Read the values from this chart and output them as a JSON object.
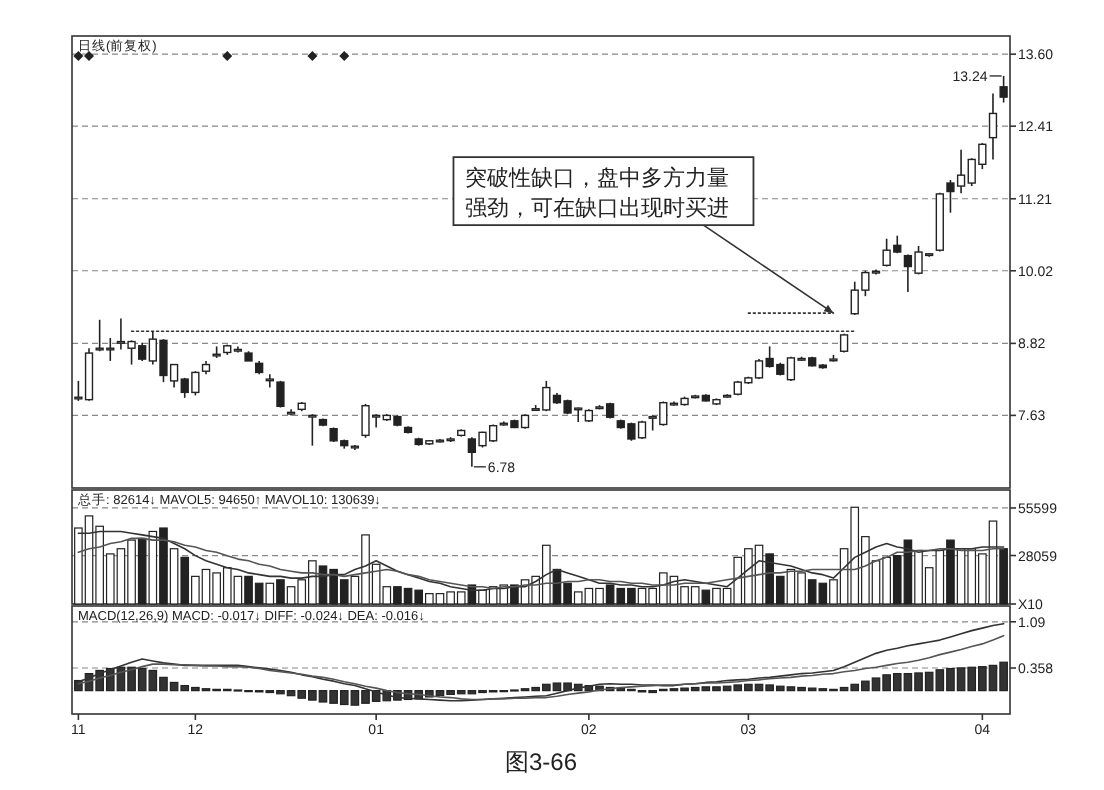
{
  "chart_data": [
    {
      "type": "candlestick",
      "categories": [
        null,
        null,
        null,
        null,
        null,
        null,
        null,
        null,
        null,
        null,
        null,
        null,
        null,
        null,
        null,
        null,
        null,
        null,
        null,
        null,
        null,
        null,
        null,
        null,
        null,
        null,
        null,
        null,
        null,
        null,
        null,
        null,
        null,
        null,
        null,
        null,
        null,
        null,
        null,
        null,
        null,
        null,
        null,
        null,
        null,
        null,
        null,
        null,
        null,
        null,
        null,
        null,
        null,
        null,
        null,
        null,
        null,
        null,
        null,
        null,
        null,
        null,
        null,
        null,
        null,
        null,
        null,
        null,
        null,
        null,
        null,
        null,
        null,
        null,
        null,
        null,
        null,
        null,
        null,
        null,
        null,
        null,
        null,
        null,
        null,
        null,
        null,
        null
      ],
      "ohlc": [
        [
          7.92,
          8.2,
          7.87,
          7.93
        ],
        [
          7.89,
          8.74,
          7.87,
          8.66
        ],
        [
          8.72,
          9.21,
          8.69,
          8.74
        ],
        [
          8.74,
          8.91,
          8.53,
          8.74
        ],
        [
          8.83,
          9.23,
          8.72,
          8.85
        ],
        [
          8.74,
          8.87,
          8.47,
          8.85
        ],
        [
          8.78,
          8.83,
          8.53,
          8.56
        ],
        [
          8.53,
          9.02,
          8.47,
          8.89
        ],
        [
          8.87,
          8.89,
          8.18,
          8.29
        ],
        [
          8.2,
          8.47,
          8.09,
          8.47
        ],
        [
          8.23,
          8.25,
          7.92,
          8.01
        ],
        [
          8.01,
          8.36,
          7.96,
          8.34
        ],
        [
          8.36,
          8.53,
          8.31,
          8.47
        ],
        [
          8.63,
          8.77,
          8.58,
          8.64
        ],
        [
          8.67,
          8.8,
          8.63,
          8.78
        ],
        [
          8.72,
          8.77,
          8.67,
          8.72
        ],
        [
          8.66,
          8.69,
          8.53,
          8.53
        ],
        [
          8.49,
          8.53,
          8.31,
          8.34
        ],
        [
          8.22,
          8.31,
          8.09,
          8.23
        ],
        [
          8.18,
          8.2,
          7.76,
          7.78
        ],
        [
          7.67,
          7.73,
          7.63,
          7.68
        ],
        [
          7.73,
          7.85,
          7.7,
          7.83
        ],
        [
          7.63,
          7.65,
          7.13,
          7.63
        ],
        [
          7.56,
          7.58,
          7.45,
          7.47
        ],
        [
          7.41,
          7.43,
          7.19,
          7.21
        ],
        [
          7.21,
          7.23,
          7.08,
          7.13
        ],
        [
          7.11,
          7.14,
          7.06,
          7.12
        ],
        [
          7.3,
          7.82,
          7.26,
          7.79
        ],
        [
          7.63,
          7.65,
          7.43,
          7.63
        ],
        [
          7.56,
          7.65,
          7.54,
          7.63
        ],
        [
          7.61,
          7.63,
          7.45,
          7.47
        ],
        [
          7.43,
          7.45,
          7.33,
          7.35
        ],
        [
          7.24,
          7.26,
          7.13,
          7.15
        ],
        [
          7.16,
          7.22,
          7.14,
          7.21
        ],
        [
          7.21,
          7.24,
          7.18,
          7.22
        ],
        [
          7.23,
          7.27,
          7.19,
          7.24
        ],
        [
          7.3,
          7.4,
          7.28,
          7.38
        ],
        [
          7.24,
          7.27,
          6.78,
          7.02
        ],
        [
          7.13,
          7.36,
          7.1,
          7.35
        ],
        [
          7.21,
          7.48,
          7.19,
          7.46
        ],
        [
          7.49,
          7.53,
          7.46,
          7.5
        ],
        [
          7.54,
          7.56,
          7.42,
          7.43
        ],
        [
          7.43,
          7.65,
          7.41,
          7.63
        ],
        [
          7.73,
          7.8,
          7.71,
          7.74
        ],
        [
          7.72,
          8.2,
          7.7,
          8.09
        ],
        [
          7.96,
          8.0,
          7.82,
          7.84
        ],
        [
          7.87,
          7.89,
          7.65,
          7.67
        ],
        [
          7.74,
          7.76,
          7.52,
          7.75
        ],
        [
          7.54,
          7.73,
          7.52,
          7.71
        ],
        [
          7.76,
          7.8,
          7.73,
          7.77
        ],
        [
          7.82,
          7.84,
          7.58,
          7.6
        ],
        [
          7.54,
          7.56,
          7.41,
          7.43
        ],
        [
          7.49,
          7.51,
          7.21,
          7.24
        ],
        [
          7.26,
          7.54,
          7.24,
          7.52
        ],
        [
          7.6,
          7.63,
          7.38,
          7.61
        ],
        [
          7.48,
          7.86,
          7.46,
          7.84
        ],
        [
          7.82,
          7.86,
          7.79,
          7.83
        ],
        [
          7.81,
          7.94,
          7.79,
          7.91
        ],
        [
          7.94,
          7.97,
          7.91,
          7.95
        ],
        [
          7.96,
          7.98,
          7.86,
          7.87
        ],
        [
          7.82,
          7.91,
          7.8,
          7.89
        ],
        [
          7.95,
          7.98,
          7.92,
          7.96
        ],
        [
          7.98,
          8.2,
          7.96,
          8.18
        ],
        [
          8.17,
          8.27,
          8.15,
          8.25
        ],
        [
          8.25,
          8.56,
          8.23,
          8.53
        ],
        [
          8.57,
          8.77,
          8.42,
          8.44
        ],
        [
          8.47,
          8.5,
          8.29,
          8.31
        ],
        [
          8.22,
          8.6,
          8.2,
          8.58
        ],
        [
          8.56,
          8.6,
          8.53,
          8.57
        ],
        [
          8.58,
          8.6,
          8.44,
          8.45
        ],
        [
          8.46,
          8.48,
          8.4,
          8.42
        ],
        [
          8.55,
          8.63,
          8.52,
          8.56
        ],
        [
          8.69,
          8.98,
          8.67,
          8.96
        ],
        [
          9.31,
          9.84,
          9.29,
          9.7
        ],
        [
          9.7,
          10.02,
          9.6,
          9.99
        ],
        [
          10.0,
          10.04,
          9.96,
          10.01
        ],
        [
          10.11,
          10.55,
          10.09,
          10.36
        ],
        [
          10.44,
          10.6,
          10.31,
          10.33
        ],
        [
          10.27,
          10.29,
          9.67,
          10.09
        ],
        [
          9.98,
          10.43,
          9.96,
          10.33
        ],
        [
          10.29,
          10.31,
          10.25,
          10.3
        ],
        [
          10.36,
          11.31,
          10.34,
          11.29
        ],
        [
          11.47,
          11.52,
          10.98,
          11.33
        ],
        [
          11.42,
          12.02,
          11.3,
          11.6
        ],
        [
          11.47,
          11.88,
          11.42,
          11.86
        ],
        [
          11.78,
          12.13,
          11.7,
          12.11
        ],
        [
          12.22,
          12.95,
          11.86,
          12.62
        ],
        [
          13.06,
          13.24,
          12.8,
          12.89
        ]
      ],
      "series": [
        {
          "type": "scatter",
          "values": [
            13.57,
            13.57,
            null,
            null,
            null,
            null,
            null,
            null,
            null,
            null,
            null,
            null,
            null,
            null,
            13.57,
            null,
            null,
            null,
            null,
            null,
            null,
            null,
            13.57,
            null,
            null,
            13.57,
            null,
            null,
            null,
            null,
            null,
            null,
            null,
            null,
            null,
            null,
            null,
            null,
            null,
            null,
            null,
            null,
            null,
            null,
            null,
            null,
            null,
            null,
            null,
            null,
            null,
            null,
            null,
            null,
            null,
            null,
            null,
            null,
            null,
            null,
            null,
            null,
            null,
            null,
            null,
            null,
            null,
            null,
            null,
            null,
            null,
            null,
            null,
            null,
            null,
            null,
            null,
            null,
            null,
            null,
            null,
            null,
            null,
            null,
            null,
            null,
            null,
            null
          ],
          "marker": "diamond",
          "color": "#222222"
        },
        {
          "type": "line",
          "values": [
            null,
            null,
            null,
            null,
            null,
            9.02,
            9.02,
            9.02,
            9.02,
            9.02,
            9.02,
            9.02,
            9.02,
            9.02,
            9.02,
            9.02,
            9.02,
            9.02,
            9.02,
            9.02,
            9.02,
            9.02,
            9.02,
            9.02,
            9.02,
            9.02,
            9.02,
            9.02,
            9.02,
            9.02,
            9.02,
            9.02,
            9.02,
            9.02,
            9.02,
            9.02,
            9.02,
            9.02,
            9.02,
            9.02,
            9.02,
            9.02,
            9.02,
            9.02,
            9.02,
            9.02,
            9.02,
            9.02,
            9.02,
            9.02,
            9.02,
            9.02,
            9.02,
            9.02,
            9.02,
            9.02,
            9.02,
            9.02,
            9.02,
            9.02,
            9.02,
            9.02,
            9.02,
            9.02,
            9.02,
            9.02,
            9.02,
            9.02,
            9.02,
            9.02,
            9.02,
            9.02,
            9.02,
            9.02,
            null,
            null,
            null,
            null,
            null,
            null,
            null,
            null,
            null,
            null,
            null,
            null,
            null,
            null
          ],
          "line_style": "dotted",
          "color": "#333333"
        },
        {
          "type": "line",
          "values": [
            null,
            null,
            null,
            null,
            null,
            null,
            null,
            null,
            null,
            null,
            null,
            null,
            null,
            null,
            null,
            null,
            null,
            null,
            null,
            null,
            null,
            null,
            null,
            null,
            null,
            null,
            null,
            null,
            null,
            null,
            null,
            null,
            null,
            null,
            null,
            null,
            null,
            null,
            null,
            null,
            null,
            null,
            null,
            null,
            null,
            null,
            null,
            null,
            null,
            null,
            null,
            null,
            null,
            null,
            null,
            null,
            null,
            null,
            null,
            null,
            null,
            null,
            null,
            9.32,
            9.32,
            9.32,
            9.32,
            9.32,
            9.32,
            9.32,
            9.32,
            9.32,
            null,
            null,
            null,
            null,
            null,
            null,
            null,
            null,
            null,
            null,
            null,
            null,
            null,
            null,
            null,
            null
          ],
          "line_style": "dotted",
          "color": "#333333"
        }
      ],
      "ylim": [
        6.43,
        13.9
      ],
      "yticks": [
        7.63,
        8.82,
        10.02,
        11.21,
        12.41,
        {
          "value": 13.6,
          "label": "13.60"
        }
      ],
      "grid": "y",
      "tick_labels": "y",
      "annotations": [
        "日线(前复权)",
        "突破性缺口，盘中多方力量强劲，可在缺口出现时买进",
        "6.78",
        "13.24"
      ]
    },
    {
      "type": "bar",
      "categories": [
        null,
        null,
        null,
        null,
        null,
        null,
        null,
        null,
        null,
        null,
        null,
        null,
        null,
        null,
        null,
        null,
        null,
        null,
        null,
        null,
        null,
        null,
        null,
        null,
        null,
        null,
        null,
        null,
        null,
        null,
        null,
        null,
        null,
        null,
        null,
        null,
        null,
        null,
        null,
        null,
        null,
        null,
        null,
        null,
        null,
        null,
        null,
        null,
        null,
        null,
        null,
        null,
        null,
        null,
        null,
        null,
        null,
        null,
        null,
        null,
        null,
        null,
        null,
        null,
        null,
        null,
        null,
        null,
        null,
        null,
        null,
        null,
        null,
        null,
        null,
        null,
        null,
        null,
        null,
        null,
        null,
        null,
        null,
        null,
        null,
        null,
        null,
        null
      ],
      "values": [
        44000,
        51000,
        45000,
        29000,
        32000,
        37000,
        38000,
        42000,
        44000,
        32000,
        27000,
        16000,
        20000,
        18000,
        21000,
        16000,
        16000,
        12000,
        12000,
        14000,
        10000,
        14000,
        25000,
        22000,
        20000,
        14000,
        16000,
        40000,
        23000,
        10000,
        10000,
        9000,
        8000,
        6000,
        6000,
        7000,
        7000,
        11000,
        8000,
        10000,
        11000,
        11000,
        14000,
        16000,
        34000,
        20000,
        12000,
        7000,
        9000,
        9000,
        11000,
        9000,
        9000,
        9000,
        9000,
        18000,
        16000,
        10000,
        10000,
        8000,
        9000,
        9000,
        27000,
        32000,
        34000,
        29000,
        16000,
        20000,
        18000,
        14000,
        12000,
        14000,
        32000,
        56000,
        39000,
        25000,
        27000,
        28000,
        37000,
        31000,
        21000,
        31000,
        37000,
        32000,
        32000,
        29000,
        48000,
        32000
      ],
      "colors": [
        "#ffffff",
        "#ffffff",
        "#ffffff",
        "#ffffff",
        "#ffffff",
        "#ffffff",
        "#222222",
        "#ffffff",
        "#222222",
        "#ffffff",
        "#222222",
        "#ffffff",
        "#ffffff",
        "#ffffff",
        "#ffffff",
        "#ffffff",
        "#222222",
        "#222222",
        "#ffffff",
        "#222222",
        "#ffffff",
        "#ffffff",
        "#ffffff",
        "#222222",
        "#222222",
        "#222222",
        "#ffffff",
        "#ffffff",
        "#ffffff",
        "#ffffff",
        "#222222",
        "#222222",
        "#222222",
        "#ffffff",
        "#ffffff",
        "#ffffff",
        "#ffffff",
        "#222222",
        "#ffffff",
        "#ffffff",
        "#ffffff",
        "#222222",
        "#ffffff",
        "#ffffff",
        "#ffffff",
        "#222222",
        "#222222",
        "#ffffff",
        "#ffffff",
        "#ffffff",
        "#222222",
        "#222222",
        "#222222",
        "#ffffff",
        "#ffffff",
        "#ffffff",
        "#ffffff",
        "#ffffff",
        "#ffffff",
        "#222222",
        "#ffffff",
        "#ffffff",
        "#ffffff",
        "#ffffff",
        "#ffffff",
        "#222222",
        "#222222",
        "#ffffff",
        "#ffffff",
        "#222222",
        "#222222",
        "#ffffff",
        "#ffffff",
        "#ffffff",
        "#ffffff",
        "#ffffff",
        "#ffffff",
        "#222222",
        "#222222",
        "#ffffff",
        "#ffffff",
        "#ffffff",
        "#222222",
        "#ffffff",
        "#ffffff",
        "#ffffff",
        "#ffffff",
        "#222222"
      ],
      "series": [
        {
          "type": "line",
          "values": [
            41000,
            41000,
            42000,
            42000,
            42000,
            41000,
            40000,
            39000,
            38000,
            35000,
            32000,
            28000,
            25000,
            23000,
            21000,
            20000,
            18000,
            17000,
            16000,
            16000,
            15000,
            15000,
            16000,
            16000,
            17000,
            17000,
            20000,
            22000,
            25000,
            22000,
            19000,
            17000,
            15000,
            13000,
            12000,
            10000,
            9000,
            8000,
            8000,
            9000,
            9000,
            10000,
            10000,
            13000,
            17000,
            20000,
            18000,
            16000,
            14000,
            12000,
            12000,
            11000,
            11000,
            10000,
            10000,
            11000,
            13000,
            14000,
            13000,
            12000,
            11000,
            10000,
            15000,
            20000,
            25000,
            24000,
            23000,
            22000,
            20000,
            18000,
            17000,
            15000,
            21000,
            27000,
            30000,
            33000,
            35000,
            33000,
            32000,
            30000,
            31000,
            31000,
            32000,
            32000,
            32000,
            33000,
            33000,
            33000
          ],
          "color": "#333333"
        },
        {
          "type": "line",
          "values": [
            30000,
            32000,
            33000,
            35000,
            36000,
            38000,
            38000,
            37000,
            37000,
            36000,
            34000,
            33000,
            31000,
            30000,
            28000,
            26000,
            25000,
            23000,
            22000,
            20000,
            19000,
            18000,
            18000,
            17000,
            17000,
            16000,
            17000,
            18000,
            19000,
            20000,
            19000,
            17000,
            16000,
            14000,
            13000,
            12000,
            11000,
            10000,
            10000,
            9000,
            10000,
            10000,
            11000,
            11000,
            12000,
            12000,
            13000,
            13000,
            14000,
            14000,
            13000,
            13000,
            12000,
            12000,
            11000,
            11000,
            11000,
            12000,
            12000,
            12000,
            13000,
            14000,
            15000,
            16000,
            17000,
            18000,
            18000,
            19000,
            19000,
            20000,
            20000,
            20000,
            20000,
            20000,
            22000,
            25000,
            27000,
            30000,
            30000,
            31000,
            31000,
            32000,
            32000,
            31000,
            31000,
            31000,
            32000,
            32000
          ],
          "color": "#555555"
        }
      ],
      "ylim": [
        0,
        66000
      ],
      "yticks": [
        {
          "value": 0,
          "label": "X10"
        },
        28059,
        55599
      ],
      "grid": "y",
      "tick_labels": "y",
      "annotations": [
        "总手: 82614↓  MAVOL5: 94650↑  MAVOL10: 130639↓"
      ]
    },
    {
      "type": "bar",
      "categories": [
        "11",
        null,
        null,
        null,
        null,
        null,
        null,
        null,
        null,
        null,
        null,
        "12",
        null,
        null,
        null,
        null,
        null,
        null,
        null,
        null,
        null,
        null,
        null,
        null,
        null,
        null,
        null,
        null,
        "01",
        null,
        null,
        null,
        null,
        null,
        null,
        null,
        null,
        null,
        null,
        null,
        null,
        null,
        null,
        null,
        null,
        null,
        null,
        null,
        "02",
        null,
        null,
        null,
        null,
        null,
        null,
        null,
        null,
        null,
        null,
        null,
        null,
        null,
        null,
        "03",
        null,
        null,
        null,
        null,
        null,
        null,
        null,
        null,
        null,
        null,
        null,
        null,
        null,
        null,
        null,
        null,
        null,
        null,
        null,
        null,
        null,
        "04",
        null,
        null
      ],
      "values": [
        0.16,
        0.27,
        0.32,
        0.35,
        0.37,
        0.37,
        0.35,
        0.32,
        0.21,
        0.13,
        0.08,
        0.05,
        0.03,
        0.02,
        0.02,
        0.01,
        -0.01,
        -0.02,
        -0.03,
        -0.05,
        -0.08,
        -0.12,
        -0.15,
        -0.18,
        -0.2,
        -0.22,
        -0.23,
        -0.2,
        -0.17,
        -0.16,
        -0.15,
        -0.14,
        -0.13,
        -0.1,
        -0.08,
        -0.06,
        -0.05,
        -0.05,
        -0.03,
        -0.02,
        -0.01,
        0.01,
        0.03,
        0.05,
        0.1,
        0.12,
        0.12,
        0.1,
        0.08,
        0.07,
        0.05,
        0.04,
        0.02,
        -0.02,
        -0.03,
        0.02,
        0.03,
        0.04,
        0.05,
        0.06,
        0.06,
        0.07,
        0.09,
        0.1,
        0.1,
        0.09,
        0.07,
        0.06,
        0.05,
        0.04,
        0.03,
        0.02,
        0.05,
        0.1,
        0.15,
        0.2,
        0.25,
        0.27,
        0.27,
        0.28,
        0.29,
        0.33,
        0.35,
        0.36,
        0.37,
        0.38,
        0.4,
        0.45
      ],
      "color": "#333333",
      "series": [
        {
          "type": "line",
          "values": [
            0.14,
            0.2,
            0.27,
            0.33,
            0.39,
            0.45,
            0.5,
            0.47,
            0.44,
            0.42,
            0.4,
            0.4,
            0.4,
            0.4,
            0.4,
            0.4,
            0.38,
            0.36,
            0.34,
            0.32,
            0.29,
            0.25,
            0.22,
            0.18,
            0.15,
            0.11,
            0.08,
            0.03,
            -0.02,
            -0.07,
            -0.11,
            -0.12,
            -0.13,
            -0.14,
            -0.15,
            -0.16,
            -0.16,
            -0.15,
            -0.14,
            -0.13,
            -0.12,
            -0.11,
            -0.1,
            -0.09,
            -0.08,
            -0.04,
            0,
            0.04,
            0.07,
            0.1,
            0.11,
            0.1,
            0.1,
            0.09,
            0.09,
            0.08,
            0.08,
            0.1,
            0.11,
            0.13,
            0.14,
            0.16,
            0.17,
            0.18,
            0.2,
            0.21,
            0.23,
            0.25,
            0.27,
            0.28,
            0.3,
            0.32,
            0.38,
            0.45,
            0.52,
            0.59,
            0.64,
            0.67,
            0.71,
            0.74,
            0.77,
            0.8,
            0.85,
            0.9,
            0.95,
            0.99,
            1.03,
            1.06
          ],
          "color": "#333333"
        },
        {
          "type": "line",
          "values": [
            0.11,
            0.15,
            0.2,
            0.24,
            0.29,
            0.33,
            0.38,
            0.42,
            0.42,
            0.41,
            0.41,
            0.4,
            0.39,
            0.39,
            0.38,
            0.38,
            0.37,
            0.35,
            0.32,
            0.3,
            0.28,
            0.26,
            0.23,
            0.21,
            0.18,
            0.14,
            0.11,
            0.07,
            0.04,
            0,
            -0.03,
            -0.05,
            -0.06,
            -0.08,
            -0.1,
            -0.11,
            -0.13,
            -0.14,
            -0.14,
            -0.13,
            -0.13,
            -0.12,
            -0.12,
            -0.11,
            -0.11,
            -0.09,
            -0.06,
            -0.04,
            -0.02,
            0.01,
            0.03,
            0.05,
            0.06,
            0.07,
            0.08,
            0.09,
            0.09,
            0.1,
            0.11,
            0.12,
            0.12,
            0.13,
            0.14,
            0.16,
            0.17,
            0.19,
            0.2,
            0.21,
            0.23,
            0.24,
            0.26,
            0.27,
            0.3,
            0.32,
            0.35,
            0.37,
            0.4,
            0.43,
            0.45,
            0.48,
            0.52,
            0.57,
            0.61,
            0.65,
            0.7,
            0.74,
            0.8,
            0.87
          ],
          "color": "#555555"
        }
      ],
      "ylim": [
        -0.37,
        1.34
      ],
      "yticks": [
        0.358,
        1.09
      ],
      "grid": "y",
      "annotations": [
        "MACD(12,26,9)  MACD: -0.017↓  DIFF: -0.024↓  DEA: -0.016↓",
        "图3-66"
      ]
    }
  ]
}
